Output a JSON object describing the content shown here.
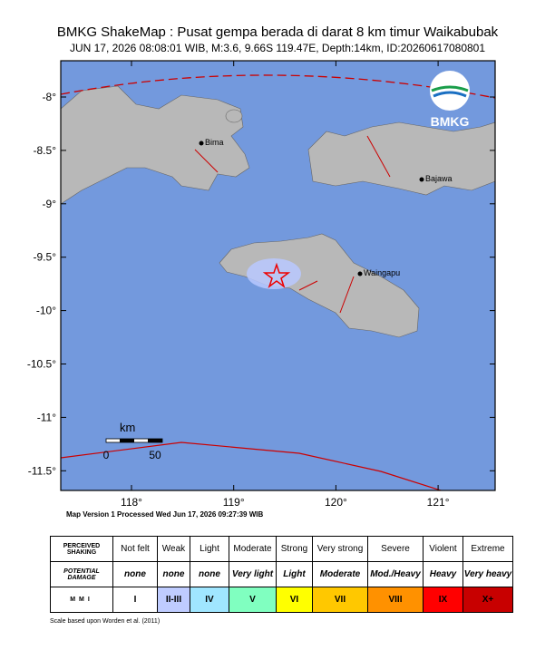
{
  "header": {
    "title": "BMKG ShakeMap : Pusat gempa berada di darat 8 km timur Waikabubak",
    "subtitle": "JUN 17, 2026 08:08:01 WIB, M:3.6, 9.66S 119.47E, Depth:14km, ID:20260617080801"
  },
  "map": {
    "lon_ticks": [
      {
        "value": 118,
        "label": "118°"
      },
      {
        "value": 119,
        "label": "119°"
      },
      {
        "value": 120,
        "label": "120°"
      },
      {
        "value": 121,
        "label": "121°"
      }
    ],
    "lat_ticks": [
      {
        "value": -8,
        "label": "-8°"
      },
      {
        "value": -8.5,
        "label": "-8.5°"
      },
      {
        "value": -9,
        "label": "-9°"
      },
      {
        "value": -9.5,
        "label": "-9.5°"
      },
      {
        "value": -10,
        "label": "-10°"
      },
      {
        "value": -10.5,
        "label": "-10.5°"
      },
      {
        "value": -11,
        "label": "-11°"
      },
      {
        "value": -11.5,
        "label": "-11.5°"
      }
    ],
    "cities": [
      "Bima",
      "Bajawa",
      "Waingapu"
    ],
    "scale": {
      "unit": "km",
      "start": "0",
      "end": "50"
    },
    "logo": "BMKG"
  },
  "version": "Map Version 1 Processed Wed Jun 17, 2026 09:27:39 WIB",
  "legend": {
    "rows": [
      {
        "label": "PERCEIVED SHAKING",
        "cells": [
          "Not felt",
          "Weak",
          "Light",
          "Moderate",
          "Strong",
          "Very strong",
          "Severe",
          "Violent",
          "Extreme"
        ]
      },
      {
        "label": "POTENTIAL DAMAGE",
        "cells": [
          "none",
          "none",
          "none",
          "Very light",
          "Light",
          "Moderate",
          "Mod./Heavy",
          "Heavy",
          "Very heavy"
        ]
      },
      {
        "label": "MMI",
        "cells": [
          "I",
          "II-III",
          "IV",
          "V",
          "VI",
          "VII",
          "VIII",
          "IX",
          "X+"
        ],
        "colors": [
          "#ffffff",
          "#bfccff",
          "#a0e6ff",
          "#80ffc0",
          "#ffff00",
          "#ffc800",
          "#ff9100",
          "#ff0000",
          "#c80000"
        ]
      }
    ]
  },
  "footer": "Scale based upon Worden et al. (2011)"
}
